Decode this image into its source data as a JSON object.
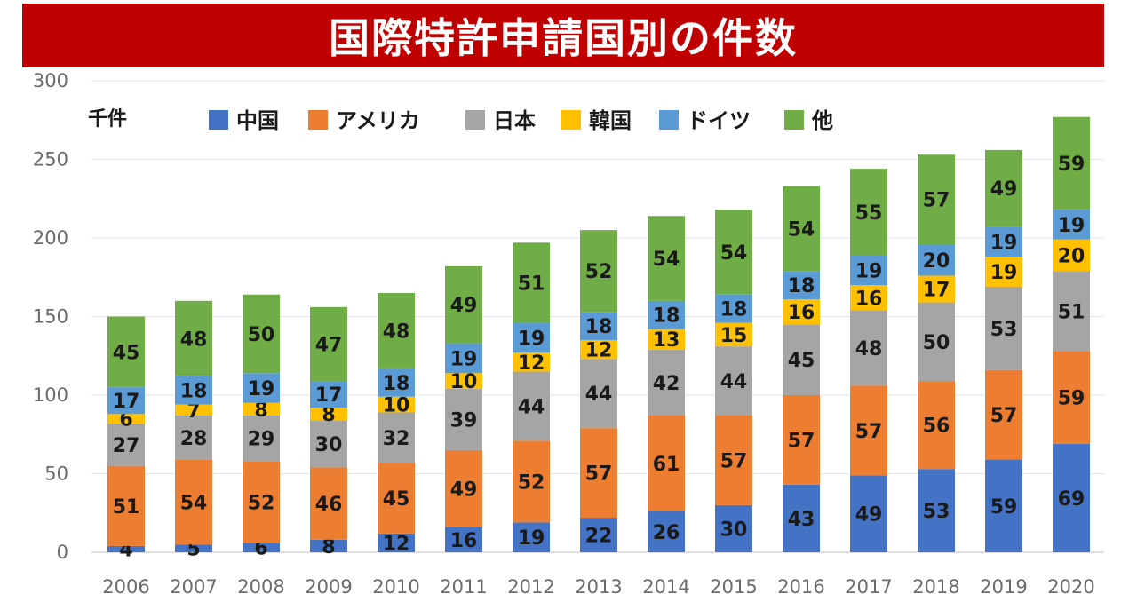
{
  "title": "国際特許申請国別の件数",
  "chart_data": {
    "type": "bar",
    "stacked": true,
    "unit_label": "千件",
    "categories": [
      "2006",
      "2007",
      "2008",
      "2009",
      "2010",
      "2011",
      "2012",
      "2013",
      "2014",
      "2015",
      "2016",
      "2017",
      "2018",
      "2019",
      "2020"
    ],
    "ylim": [
      0,
      300
    ],
    "yticks": [
      0,
      50,
      100,
      150,
      200,
      250,
      300
    ],
    "grid": true,
    "legend_position": "top",
    "series": [
      {
        "name": "中国",
        "color": "#4472c4",
        "values": [
          4,
          5,
          6,
          8,
          12,
          16,
          19,
          22,
          26,
          30,
          43,
          49,
          53,
          59,
          69
        ]
      },
      {
        "name": "アメリカ",
        "color": "#ed7d31",
        "values": [
          51,
          54,
          52,
          46,
          45,
          49,
          52,
          57,
          61,
          57,
          57,
          57,
          56,
          57,
          59
        ]
      },
      {
        "name": "日本",
        "color": "#a5a5a5",
        "values": [
          27,
          28,
          29,
          30,
          32,
          39,
          44,
          44,
          42,
          44,
          45,
          48,
          50,
          53,
          51
        ]
      },
      {
        "name": "韓国",
        "color": "#ffc000",
        "values": [
          6,
          7,
          8,
          8,
          10,
          10,
          12,
          12,
          13,
          15,
          16,
          16,
          17,
          19,
          20
        ]
      },
      {
        "name": "ドイツ",
        "color": "#5b9bd5",
        "values": [
          17,
          18,
          19,
          17,
          18,
          19,
          19,
          18,
          18,
          18,
          18,
          19,
          20,
          19,
          19
        ]
      },
      {
        "name": "他",
        "color": "#70ad47",
        "values": [
          45,
          48,
          50,
          47,
          48,
          49,
          51,
          52,
          54,
          54,
          54,
          55,
          57,
          49,
          59
        ]
      }
    ]
  }
}
